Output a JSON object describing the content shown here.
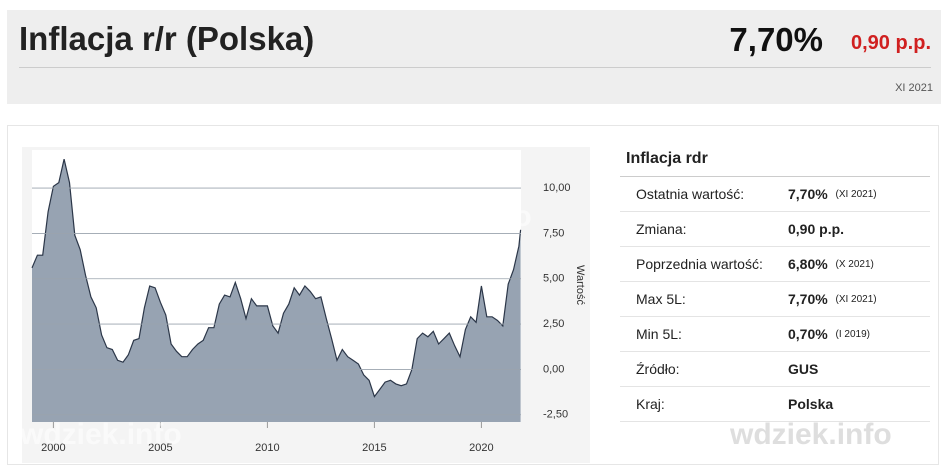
{
  "header": {
    "title": "Inflacja r/r (Polska)",
    "value": "7,70%",
    "change": "0,90 p.p.",
    "date": "XI 2021"
  },
  "watermark": "wdziek.info",
  "table": {
    "title": "Inflacja rdr",
    "rows": [
      [
        "Ostatnia wartość:",
        "7,70%",
        "(XI 2021)"
      ],
      [
        "Zmiana:",
        "0,90 p.p.",
        ""
      ],
      [
        "Poprzednia wartość:",
        "6,80%",
        "(X 2021)"
      ],
      [
        "Max 5L:",
        "7,70%",
        "(XI 2021)"
      ],
      [
        "Min 5L:",
        "0,70%",
        "(I 2019)"
      ],
      [
        "Źródło:",
        "GUS",
        ""
      ],
      [
        "Kraj:",
        "Polska",
        ""
      ]
    ]
  },
  "chart_data": {
    "type": "area",
    "y_label": "Wartość",
    "color": "#97a3b2",
    "line_color": "#2b3648",
    "grid": true,
    "xlim": [
      1999,
      2021.85
    ],
    "xticks": [
      2000,
      2005,
      2010,
      2015,
      2020
    ],
    "ylim": [
      -2.9,
      12.1
    ],
    "yticks": [
      {
        "value": -2.5,
        "label": "-2,50"
      },
      {
        "value": 0,
        "label": "0,00"
      },
      {
        "value": 2.5,
        "label": "2,50"
      },
      {
        "value": 5,
        "label": "5,00"
      },
      {
        "value": 7.5,
        "label": "7,50"
      },
      {
        "value": 10,
        "label": "10,00"
      }
    ],
    "x": [
      1999,
      1999.25,
      1999.5,
      1999.75,
      2000,
      2000.25,
      2000.5,
      2000.75,
      2001,
      2001.25,
      2001.5,
      2001.75,
      2002,
      2002.25,
      2002.5,
      2002.75,
      2003,
      2003.25,
      2003.5,
      2003.75,
      2004,
      2004.25,
      2004.5,
      2004.75,
      2005,
      2005.25,
      2005.5,
      2005.75,
      2006,
      2006.25,
      2006.5,
      2006.75,
      2007,
      2007.25,
      2007.5,
      2007.75,
      2008,
      2008.25,
      2008.5,
      2008.75,
      2009,
      2009.25,
      2009.5,
      2009.75,
      2010,
      2010.25,
      2010.5,
      2010.75,
      2011,
      2011.25,
      2011.5,
      2011.75,
      2012,
      2012.25,
      2012.5,
      2012.75,
      2013,
      2013.25,
      2013.5,
      2013.75,
      2014,
      2014.25,
      2014.5,
      2014.75,
      2015,
      2015.25,
      2015.5,
      2015.75,
      2016,
      2016.25,
      2016.5,
      2016.75,
      2017,
      2017.25,
      2017.5,
      2017.75,
      2018,
      2018.25,
      2018.5,
      2018.75,
      2019,
      2019.25,
      2019.5,
      2019.75,
      2020,
      2020.25,
      2020.5,
      2020.75,
      2021,
      2021.25,
      2021.5,
      2021.75,
      2021.833
    ],
    "values": [
      5.6,
      6.3,
      6.3,
      8.7,
      10.1,
      10.3,
      11.6,
      10.3,
      7.4,
      6.6,
      5.2,
      4.0,
      3.4,
      1.9,
      1.2,
      1.1,
      0.5,
      0.4,
      0.8,
      1.6,
      1.7,
      3.4,
      4.6,
      4.5,
      3.7,
      3.0,
      1.4,
      1.0,
      0.7,
      0.7,
      1.1,
      1.4,
      1.6,
      2.3,
      2.3,
      3.6,
      4.1,
      4.0,
      4.8,
      3.9,
      2.8,
      3.9,
      3.5,
      3.5,
      3.5,
      2.4,
      2.0,
      3.1,
      3.6,
      4.5,
      4.1,
      4.6,
      4.3,
      3.9,
      4.0,
      2.8,
      1.7,
      0.5,
      1.1,
      0.7,
      0.5,
      0.3,
      -0.3,
      -0.6,
      -1.5,
      -1.1,
      -0.7,
      -0.6,
      -0.8,
      -0.9,
      -0.8,
      0.0,
      1.7,
      2.0,
      1.8,
      2.1,
      1.4,
      1.7,
      2.0,
      1.3,
      0.7,
      2.2,
      2.9,
      2.6,
      4.6,
      2.9,
      2.9,
      2.7,
      2.4,
      4.7,
      5.5,
      6.8,
      7.7
    ]
  }
}
